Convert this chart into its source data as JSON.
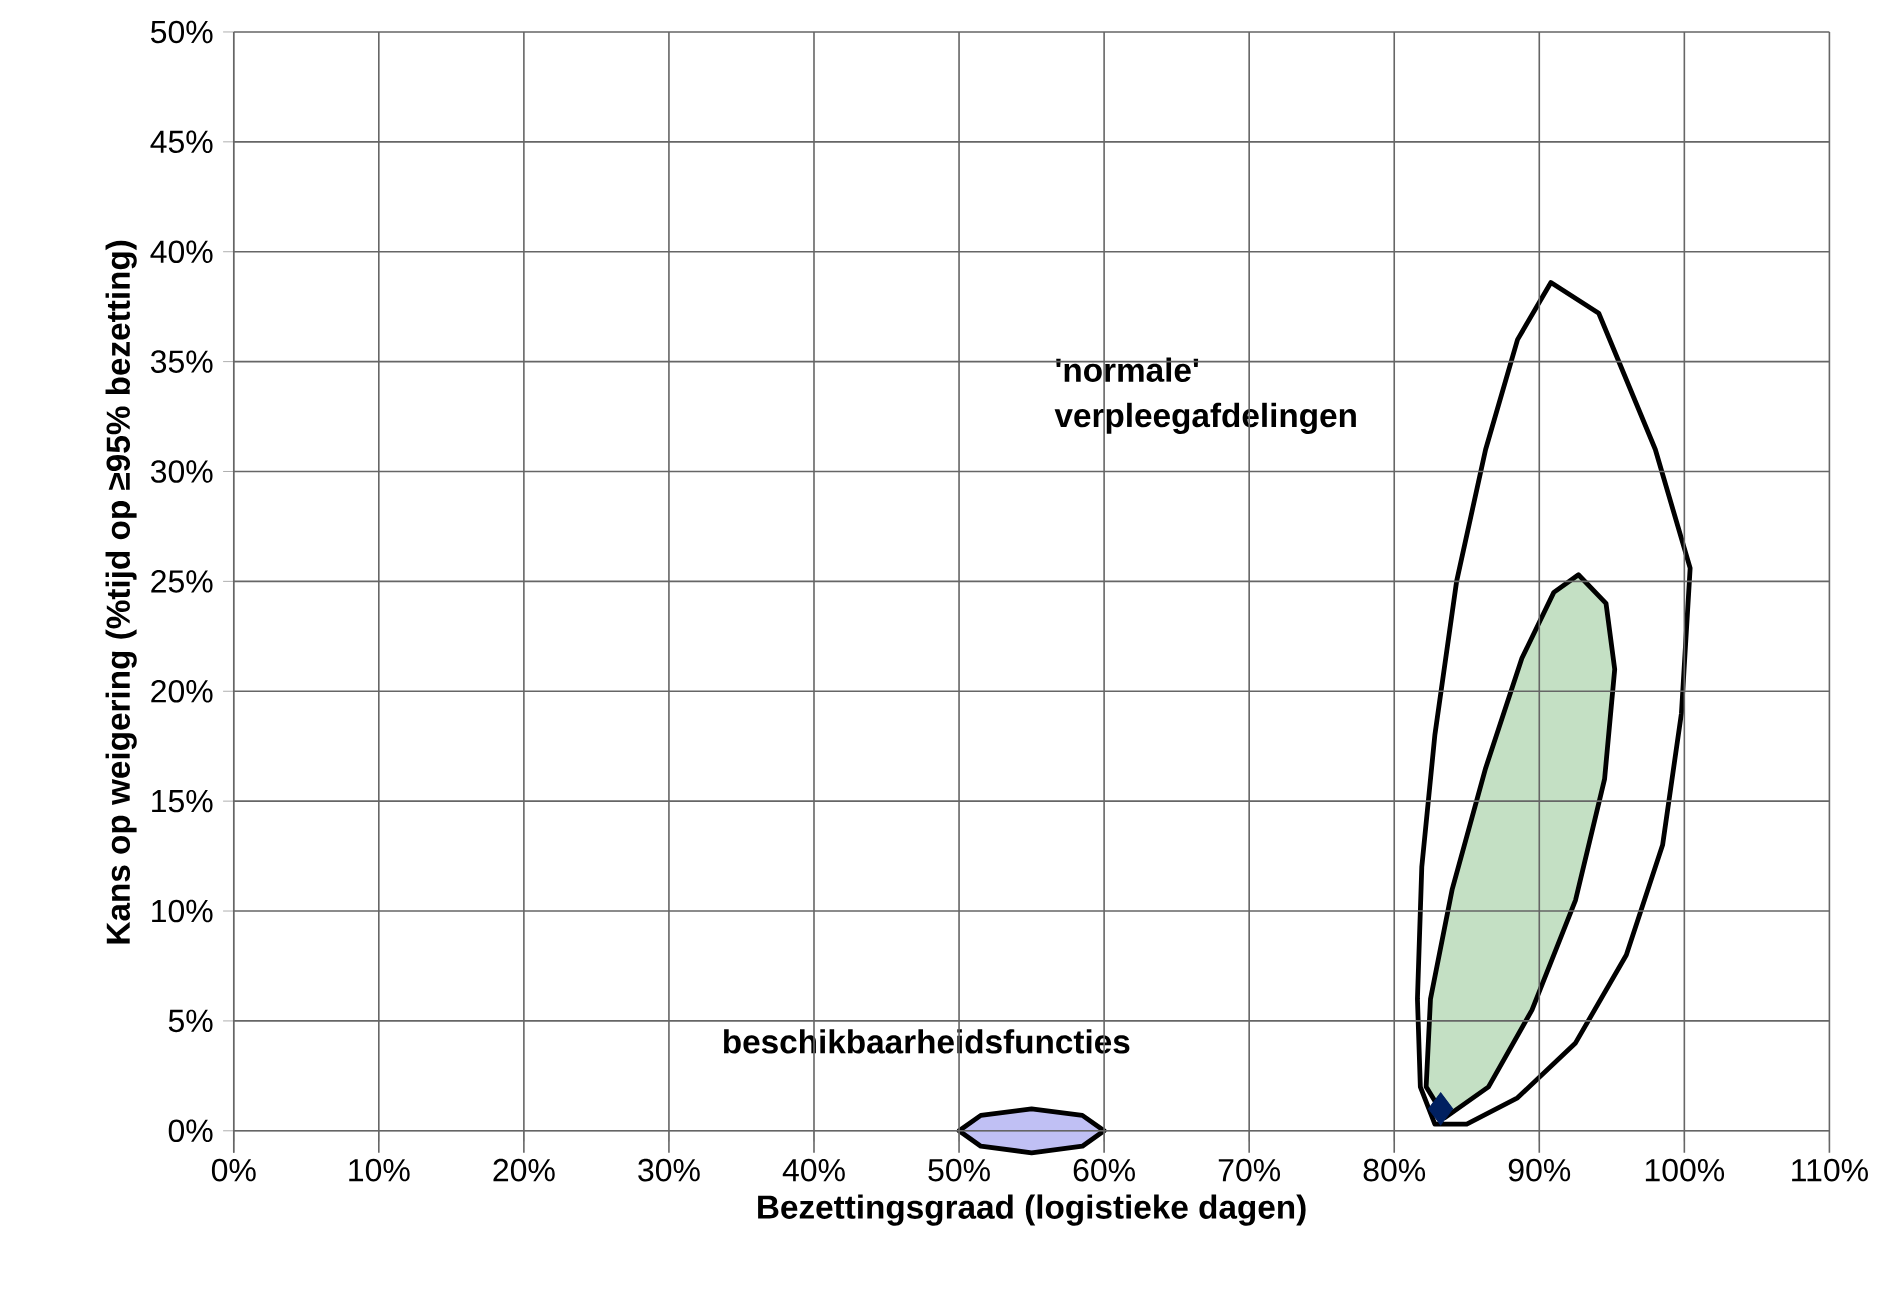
{
  "chart_data": {
    "type": "scatter",
    "xlabel": "Bezettingsgraad (logistieke dagen)",
    "ylabel": "Kans op weigering (%tijd op ≥95% bezetting)",
    "xlim": [
      0,
      110
    ],
    "ylim": [
      -1,
      50
    ],
    "xticks": [
      {
        "value": 0,
        "label": "0%"
      },
      {
        "value": 10,
        "label": "10%"
      },
      {
        "value": 20,
        "label": "20%"
      },
      {
        "value": 30,
        "label": "30%"
      },
      {
        "value": 40,
        "label": "40%"
      },
      {
        "value": 50,
        "label": "50%"
      },
      {
        "value": 60,
        "label": "60%"
      },
      {
        "value": 70,
        "label": "70%"
      },
      {
        "value": 80,
        "label": "80%"
      },
      {
        "value": 90,
        "label": "90%"
      },
      {
        "value": 100,
        "label": "100%"
      },
      {
        "value": 110,
        "label": "110%"
      }
    ],
    "yticks": [
      {
        "value": 0,
        "label": "0%"
      },
      {
        "value": 5,
        "label": "5%"
      },
      {
        "value": 10,
        "label": "10%"
      },
      {
        "value": 15,
        "label": "15%"
      },
      {
        "value": 20,
        "label": "20%"
      },
      {
        "value": 25,
        "label": "25%"
      },
      {
        "value": 30,
        "label": "30%"
      },
      {
        "value": 35,
        "label": "35%"
      },
      {
        "value": 40,
        "label": "40%"
      },
      {
        "value": 45,
        "label": "45%"
      },
      {
        "value": 50,
        "label": "50%"
      }
    ],
    "grid": true,
    "series": [
      {
        "type": "area",
        "color": "#c0c0f4",
        "x": [
          50.0,
          51.5,
          55.0,
          58.5,
          60.0,
          58.5,
          55.0,
          51.5
        ],
        "values": [
          0.0,
          0.7,
          1.0,
          0.7,
          0.0,
          -0.7,
          -1.0,
          -0.7
        ]
      },
      {
        "type": "area",
        "color": "#c4e0c4",
        "x": [
          92.7,
          94.6,
          95.2,
          94.5,
          92.5,
          89.5,
          86.5,
          83.5,
          82.2,
          82.5,
          84.0,
          86.3,
          88.8,
          91.0
        ],
        "values": [
          25.3,
          24.0,
          21.0,
          16.0,
          10.5,
          5.5,
          2.0,
          0.6,
          2.0,
          6.0,
          11.0,
          16.5,
          21.5,
          24.5
        ]
      },
      {
        "type": "area",
        "color": "#ffffff",
        "x": [
          90.8,
          94.1,
          98.0,
          100.4,
          99.8,
          98.5,
          96.0,
          92.5,
          88.5,
          85.0,
          82.8,
          81.8,
          81.6,
          81.9,
          82.8,
          84.3,
          86.3,
          88.5
        ],
        "values": [
          38.6,
          37.2,
          31.0,
          25.6,
          19.0,
          13.0,
          8.0,
          4.0,
          1.5,
          0.3,
          0.3,
          2.0,
          6.0,
          12.0,
          18.0,
          25.0,
          31.0,
          36.0
        ]
      },
      {
        "marker": "diamond",
        "color": "#002060",
        "x": [
          83.2
        ],
        "values": [
          1.0
        ]
      }
    ],
    "annotations": [
      "'normale' verpleegafdelingen",
      "beschikbaarheidsfuncties"
    ]
  }
}
